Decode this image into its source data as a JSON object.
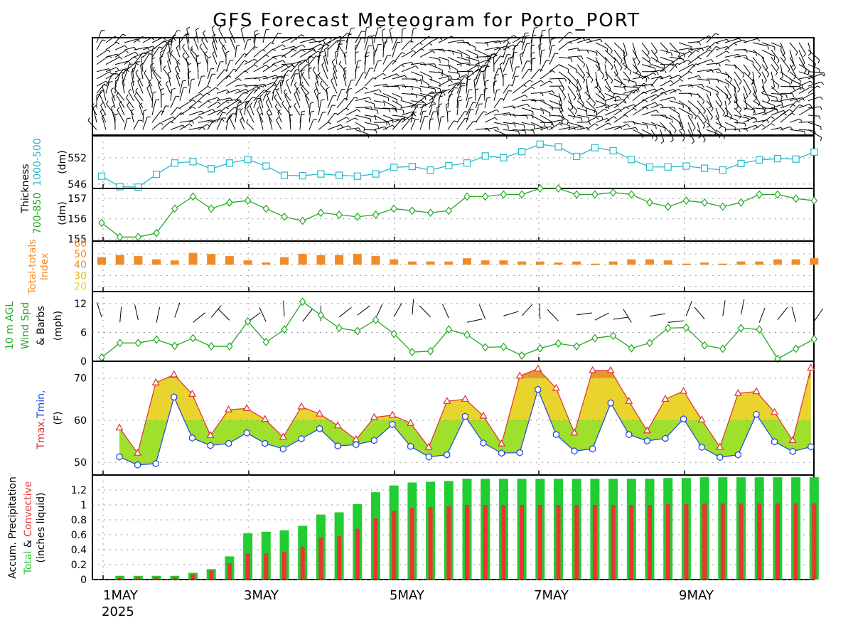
{
  "title": "GFS Forecast Meteogram for Porto_PORT",
  "colors": {
    "thickness": "#22bbcc",
    "thickness850": "#22aa22",
    "tt_bar": "#f08c28",
    "wind": "#22aa22",
    "tmax": "#e03030",
    "tmin": "#2244dd",
    "fill_warm": "#e8d42c",
    "fill_cool": "#9ee02c",
    "fill_hot": "#e8962c",
    "precip_total": "#22cc33",
    "precip_conv": "#ee3333"
  },
  "x_axis": {
    "ticks": [
      "1MAY",
      "3MAY",
      "5MAY",
      "7MAY",
      "9MAY"
    ],
    "year": "2025"
  },
  "chart_data": [
    {
      "id": "wind_profile",
      "type": "barbs",
      "description_text": ""
    },
    {
      "id": "thickness_1000_500",
      "type": "line",
      "ylabel": [
        "Thickness",
        "1000-500",
        "(dm)"
      ],
      "ylim": [
        545,
        557
      ],
      "yticks": [
        546,
        552
      ],
      "values": [
        547.8,
        545.4,
        545.3,
        548.2,
        550.8,
        551.1,
        549.5,
        550.8,
        551.6,
        550.1,
        548.0,
        547.9,
        548.3,
        548.0,
        547.8,
        548.3,
        549.8,
        550.0,
        549.2,
        550.2,
        550.8,
        552.4,
        552.0,
        553.4,
        555.1,
        554.5,
        552.3,
        554.3,
        553.6,
        551.6,
        549.9,
        549.9,
        550.1,
        549.6,
        549.2,
        550.7,
        551.5,
        551.8,
        551.7,
        553.3
      ],
      "marker": "square"
    },
    {
      "id": "thickness_700_850",
      "type": "line",
      "ylabel": [
        "700-850",
        "(dm)"
      ],
      "ylim": [
        154.9,
        157.5
      ],
      "yticks": [
        155,
        156,
        157
      ],
      "values": [
        155.8,
        155.1,
        155.1,
        155.3,
        156.5,
        157.1,
        156.5,
        156.8,
        156.9,
        156.5,
        156.1,
        155.9,
        156.3,
        156.2,
        156.1,
        156.2,
        156.5,
        156.4,
        156.3,
        156.4,
        157.1,
        157.1,
        157.2,
        157.2,
        157.5,
        157.5,
        157.2,
        157.2,
        157.3,
        157.2,
        156.8,
        156.6,
        156.9,
        156.8,
        156.6,
        156.8,
        157.2,
        157.2,
        157.0,
        156.9
      ],
      "marker": "diamond"
    },
    {
      "id": "total_totals",
      "type": "bar",
      "ylabel": [
        "Total-totals",
        "Index"
      ],
      "ylim": [
        15,
        62
      ],
      "yticks": [
        20,
        30,
        40,
        50,
        60
      ],
      "base": 40,
      "values": [
        47,
        49,
        48,
        45,
        44,
        51,
        50,
        48,
        44,
        42,
        47,
        50,
        49,
        49,
        50,
        48,
        45,
        43,
        43,
        43,
        46,
        44,
        44,
        43,
        43,
        42,
        43,
        41,
        43,
        45,
        45,
        44,
        41,
        42,
        41,
        43,
        43,
        45,
        45,
        46
      ]
    },
    {
      "id": "wind_speed",
      "type": "line",
      "ylabel": [
        "10 m AGL",
        "Wind Spd",
        "& Barbs",
        "(mph)"
      ],
      "ylim": [
        0,
        14.5
      ],
      "yticks": [
        0,
        6,
        12
      ],
      "values": [
        0.8,
        3.8,
        3.8,
        4.5,
        3.2,
        4.8,
        3.1,
        3.1,
        8.3,
        4.0,
        6.6,
        12.4,
        9.6,
        6.9,
        6.3,
        8.6,
        5.7,
        1.9,
        2.1,
        6.6,
        5.5,
        2.9,
        3.0,
        1.2,
        2.7,
        3.7,
        3.1,
        4.8,
        5.3,
        2.7,
        3.8,
        6.9,
        7.0,
        3.3,
        2.6,
        6.9,
        6.6,
        0.5,
        2.6,
        4.6
      ],
      "marker": "diamond"
    },
    {
      "id": "temperature",
      "type": "area",
      "ylabel": [
        "Tmax,Tmin,",
        "(F)"
      ],
      "ylim": [
        47,
        74
      ],
      "yticks": [
        50,
        60,
        70
      ],
      "tmax": [
        58.2,
        52.2,
        68.9,
        70.8,
        66.2,
        56.4,
        62.5,
        62.8,
        60.2,
        56.0,
        63.2,
        61.5,
        58.7,
        55.4,
        60.7,
        61.2,
        59.3,
        53.6,
        64.5,
        65.0,
        61.0,
        54.4,
        70.5,
        72.2,
        67.6,
        57.0,
        71.8,
        71.8,
        64.5,
        57.5,
        65.0,
        66.9,
        60.1,
        53.6,
        66.4,
        66.8,
        61.9,
        55.2,
        72.4
      ],
      "tmin": [
        51.3,
        49.4,
        49.7,
        65.5,
        55.8,
        54.0,
        54.5,
        57.0,
        54.5,
        53.2,
        55.6,
        58.0,
        53.9,
        54.2,
        55.2,
        59.0,
        53.8,
        51.3,
        51.8,
        60.9,
        54.6,
        52.2,
        52.3,
        67.3,
        56.6,
        52.7,
        53.2,
        64.1,
        56.6,
        55.1,
        55.7,
        60.3,
        53.6,
        51.2,
        51.8,
        61.4,
        54.9,
        52.6,
        53.7
      ]
    },
    {
      "id": "precipitation",
      "type": "bar",
      "ylabel": [
        "Accum. Precipitation",
        "Total & Convective",
        "(inches liquid)"
      ],
      "ylim": [
        0,
        1.4
      ],
      "yticks": [
        "0",
        "0.2",
        "0.4",
        "0.6",
        "0.8",
        "1",
        "1.2"
      ],
      "total": [
        0.0,
        0.05,
        0.05,
        0.05,
        0.05,
        0.09,
        0.14,
        0.31,
        0.62,
        0.64,
        0.66,
        0.72,
        0.87,
        0.9,
        1.01,
        1.17,
        1.26,
        1.3,
        1.31,
        1.32,
        1.35,
        1.35,
        1.35,
        1.35,
        1.35,
        1.35,
        1.35,
        1.35,
        1.35,
        1.35,
        1.35,
        1.36,
        1.36,
        1.37,
        1.37,
        1.37,
        1.37,
        1.37,
        1.37,
        1.37
      ],
      "convective": [
        0.0,
        0.03,
        0.03,
        0.03,
        0.03,
        0.07,
        0.12,
        0.22,
        0.35,
        0.35,
        0.37,
        0.44,
        0.56,
        0.58,
        0.68,
        0.82,
        0.92,
        0.96,
        0.97,
        0.98,
        1.0,
        1.0,
        1.0,
        1.0,
        1.0,
        1.0,
        1.0,
        1.0,
        1.0,
        1.0,
        1.0,
        1.01,
        1.01,
        1.02,
        1.02,
        1.02,
        1.02,
        1.02,
        1.02,
        1.02
      ]
    }
  ]
}
